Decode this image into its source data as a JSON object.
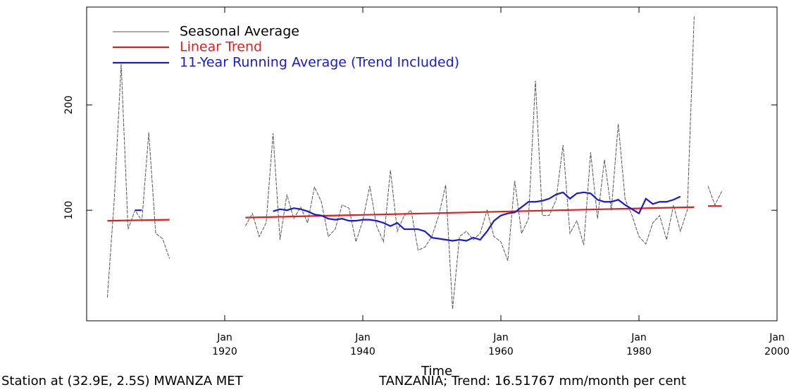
{
  "chart_data": {
    "type": "line",
    "xlabel": "Time",
    "footer_left": "Station at (32.9E, 2.5S) MWANZA MET",
    "footer_right": "TANZANIA; Trend: 16.51767 mm/month per cent",
    "xlim": [
      1900,
      2000
    ],
    "ylim": [
      -5,
      293
    ],
    "xticks": [
      {
        "value": 1920,
        "label": "Jan\n1920"
      },
      {
        "value": 1940,
        "label": "Jan\n1940"
      },
      {
        "value": 1960,
        "label": "Jan\n1960"
      },
      {
        "value": 1980,
        "label": "Jan\n1980"
      },
      {
        "value": 2000,
        "label": "Jan\n2000"
      }
    ],
    "yticks": [
      100,
      200
    ],
    "series": [
      {
        "name": "Seasonal Average",
        "color": "#555555",
        "x": [
          1903,
          1904,
          1905,
          1906,
          1907,
          1908,
          1909,
          1910,
          1911,
          1912,
          1913,
          1914,
          1915,
          1916,
          1917,
          1918,
          1919,
          1920,
          1921,
          1922,
          1923,
          1924,
          1925,
          1926,
          1927,
          1928,
          1929,
          1930,
          1931,
          1932,
          1933,
          1934,
          1935,
          1936,
          1937,
          1938,
          1939,
          1940,
          1941,
          1942,
          1943,
          1944,
          1945,
          1946,
          1947,
          1948,
          1949,
          1950,
          1951,
          1952,
          1953,
          1954,
          1955,
          1956,
          1957,
          1958,
          1959,
          1960,
          1961,
          1962,
          1963,
          1964,
          1965,
          1966,
          1967,
          1968,
          1969,
          1970,
          1971,
          1972,
          1973,
          1974,
          1975,
          1976,
          1977,
          1978,
          1979,
          1980,
          1981,
          1982,
          1983,
          1984,
          1985,
          1986,
          1987,
          1988,
          1989,
          1990,
          1991,
          1992
        ],
        "values": [
          17,
          110,
          239,
          82,
          100,
          90,
          174,
          78,
          73,
          54,
          null,
          null,
          null,
          null,
          null,
          null,
          null,
          null,
          null,
          null,
          85,
          97,
          75,
          88,
          173,
          72,
          115,
          92,
          103,
          88,
          122,
          108,
          75,
          82,
          105,
          102,
          70,
          90,
          123,
          85,
          70,
          138,
          80,
          95,
          100,
          62,
          65,
          75,
          95,
          124,
          6,
          75,
          80,
          72,
          78,
          100,
          75,
          70,
          52,
          128,
          78,
          92,
          223,
          95,
          95,
          110,
          162,
          78,
          90,
          67,
          155,
          92,
          148,
          100,
          182,
          110,
          95,
          75,
          68,
          88,
          95,
          72,
          105,
          80,
          100,
          285,
          null,
          123,
          105,
          118
        ]
      },
      {
        "name": "Linear Trend",
        "color": "#e02020",
        "x": [
          1903,
          1912,
          1913,
          1923,
          1988,
          1989,
          1990,
          1992
        ],
        "values": [
          90,
          91,
          null,
          93,
          103,
          null,
          104,
          104
        ]
      },
      {
        "name": "11-Year Running Average (Trend Included)",
        "color": "#1a1ad0",
        "x": [
          1907,
          1908,
          1909,
          1927,
          1928,
          1929,
          1930,
          1931,
          1932,
          1933,
          1934,
          1935,
          1936,
          1937,
          1938,
          1939,
          1940,
          1941,
          1942,
          1943,
          1944,
          1945,
          1946,
          1947,
          1948,
          1949,
          1950,
          1951,
          1952,
          1953,
          1954,
          1955,
          1956,
          1957,
          1958,
          1959,
          1960,
          1961,
          1962,
          1963,
          1964,
          1965,
          1966,
          1967,
          1968,
          1969,
          1970,
          1971,
          1972,
          1973,
          1974,
          1975,
          1976,
          1977,
          1978,
          1979,
          1980,
          1981,
          1982,
          1983,
          1984,
          1985,
          1986
        ],
        "values": [
          100,
          100,
          null,
          99,
          101,
          100,
          102,
          101,
          99,
          96,
          95,
          92,
          91,
          92,
          90,
          90,
          91,
          91,
          90,
          88,
          85,
          88,
          82,
          82,
          82,
          80,
          74,
          73,
          72,
          71,
          72,
          71,
          74,
          72,
          80,
          90,
          95,
          97,
          98,
          103,
          108,
          108,
          109,
          111,
          115,
          117,
          111,
          116,
          117,
          116,
          110,
          108,
          108,
          110,
          105,
          101,
          97,
          111,
          106,
          108,
          108,
          110,
          113
        ]
      }
    ]
  }
}
